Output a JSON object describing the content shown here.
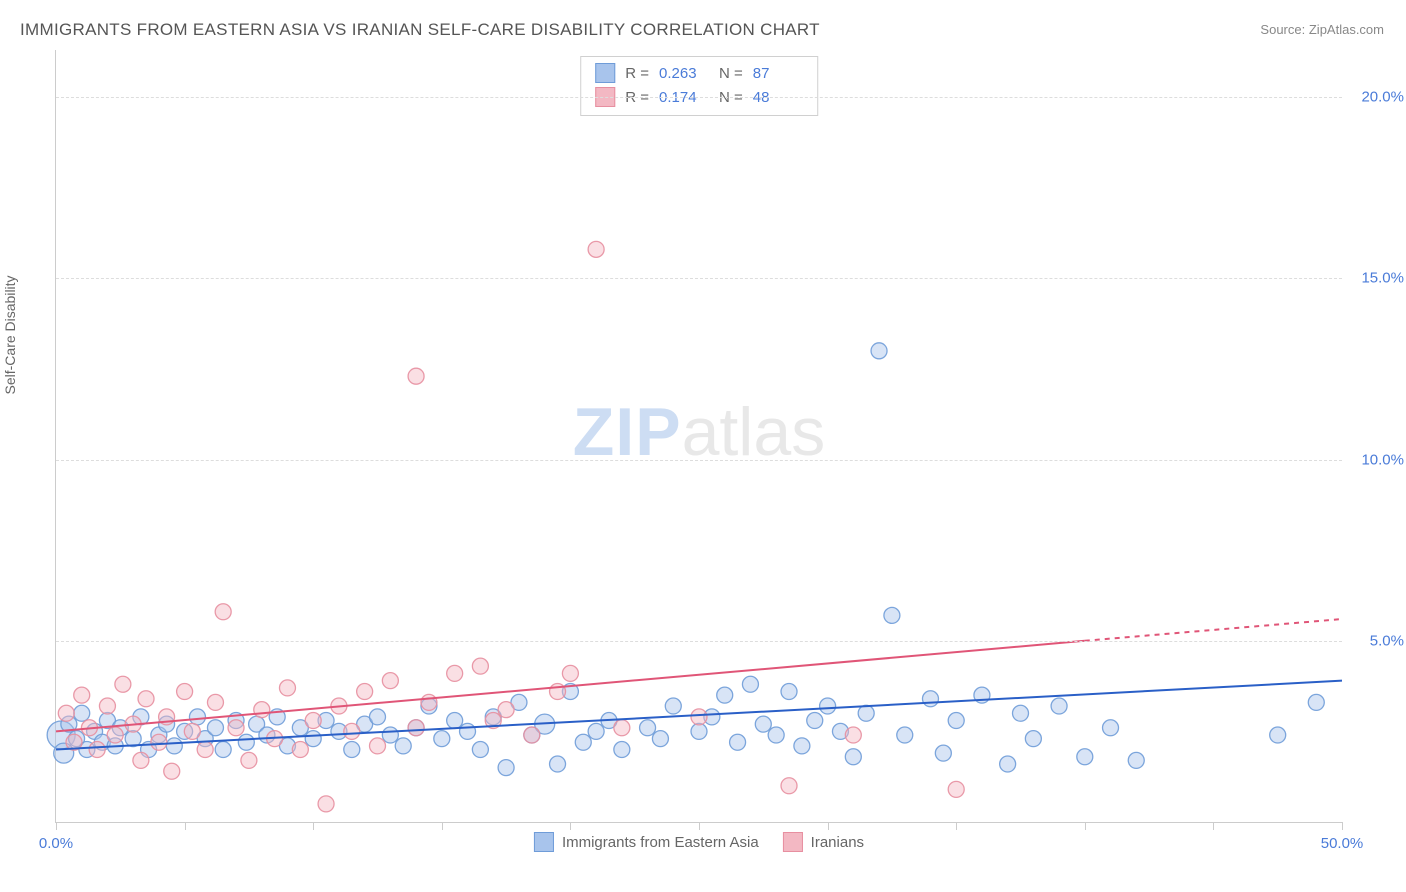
{
  "title": "IMMIGRANTS FROM EASTERN ASIA VS IRANIAN SELF-CARE DISABILITY CORRELATION CHART",
  "source_label": "Source:",
  "source_value": "ZipAtlas.com",
  "y_axis_title": "Self-Care Disability",
  "watermark": {
    "zip": "ZIP",
    "atlas": "atlas"
  },
  "chart": {
    "type": "scatter",
    "xlim": [
      0,
      50
    ],
    "ylim": [
      0,
      21.3
    ],
    "x_ticks": [
      0,
      5,
      10,
      15,
      20,
      25,
      30,
      35,
      40,
      45,
      50
    ],
    "x_tick_labels": {
      "0": "0.0%",
      "50": "50.0%"
    },
    "y_ticks": [
      5,
      10,
      15,
      20
    ],
    "y_tick_labels": {
      "5": "5.0%",
      "10": "10.0%",
      "15": "15.0%",
      "20": "20.0%"
    },
    "grid_color": "#dddddd",
    "axis_line_color": "#cccccc",
    "tick_label_color": "#4a7bd8",
    "background_color": "#ffffff",
    "marker_radius": 8,
    "marker_radius_large": 14,
    "marker_fill_opacity": 0.45,
    "marker_stroke_opacity": 0.9,
    "line_width": 2,
    "series": [
      {
        "name": "Immigrants from Eastern Asia",
        "color_fill": "#a8c4ec",
        "color_stroke": "#6f9cd8",
        "line_color": "#2a5fc7",
        "R": "0.263",
        "N": "87",
        "trend": {
          "x1": 0,
          "y1": 2.0,
          "x2": 50,
          "y2": 3.9
        },
        "points": [
          [
            0.2,
            2.4,
            14
          ],
          [
            0.3,
            1.9,
            10
          ],
          [
            0.5,
            2.7,
            8
          ],
          [
            0.8,
            2.3,
            8
          ],
          [
            1.0,
            3.0,
            8
          ],
          [
            1.2,
            2.0,
            8
          ],
          [
            1.5,
            2.5,
            8
          ],
          [
            1.8,
            2.2,
            8
          ],
          [
            2.0,
            2.8,
            8
          ],
          [
            2.3,
            2.1,
            8
          ],
          [
            2.5,
            2.6,
            8
          ],
          [
            3.0,
            2.3,
            8
          ],
          [
            3.3,
            2.9,
            8
          ],
          [
            3.6,
            2.0,
            8
          ],
          [
            4.0,
            2.4,
            8
          ],
          [
            4.3,
            2.7,
            8
          ],
          [
            4.6,
            2.1,
            8
          ],
          [
            5.0,
            2.5,
            8
          ],
          [
            5.5,
            2.9,
            8
          ],
          [
            5.8,
            2.3,
            8
          ],
          [
            6.2,
            2.6,
            8
          ],
          [
            6.5,
            2.0,
            8
          ],
          [
            7.0,
            2.8,
            8
          ],
          [
            7.4,
            2.2,
            8
          ],
          [
            7.8,
            2.7,
            8
          ],
          [
            8.2,
            2.4,
            8
          ],
          [
            8.6,
            2.9,
            8
          ],
          [
            9.0,
            2.1,
            8
          ],
          [
            9.5,
            2.6,
            8
          ],
          [
            10.0,
            2.3,
            8
          ],
          [
            10.5,
            2.8,
            8
          ],
          [
            11.0,
            2.5,
            8
          ],
          [
            11.5,
            2.0,
            8
          ],
          [
            12.0,
            2.7,
            8
          ],
          [
            12.5,
            2.9,
            8
          ],
          [
            13.0,
            2.4,
            8
          ],
          [
            13.5,
            2.1,
            8
          ],
          [
            14.0,
            2.6,
            8
          ],
          [
            14.5,
            3.2,
            8
          ],
          [
            15.0,
            2.3,
            8
          ],
          [
            15.5,
            2.8,
            8
          ],
          [
            16.0,
            2.5,
            8
          ],
          [
            16.5,
            2.0,
            8
          ],
          [
            17.0,
            2.9,
            8
          ],
          [
            17.5,
            1.5,
            8
          ],
          [
            18.0,
            3.3,
            8
          ],
          [
            18.5,
            2.4,
            8
          ],
          [
            19.0,
            2.7,
            10
          ],
          [
            19.5,
            1.6,
            8
          ],
          [
            20.0,
            3.6,
            8
          ],
          [
            20.5,
            2.2,
            8
          ],
          [
            21.0,
            2.5,
            8
          ],
          [
            21.5,
            2.8,
            8
          ],
          [
            22.0,
            2.0,
            8
          ],
          [
            23.0,
            2.6,
            8
          ],
          [
            23.5,
            2.3,
            8
          ],
          [
            24.0,
            3.2,
            8
          ],
          [
            25.0,
            2.5,
            8
          ],
          [
            25.5,
            2.9,
            8
          ],
          [
            26.0,
            3.5,
            8
          ],
          [
            26.5,
            2.2,
            8
          ],
          [
            27.0,
            3.8,
            8
          ],
          [
            27.5,
            2.7,
            8
          ],
          [
            28.0,
            2.4,
            8
          ],
          [
            28.5,
            3.6,
            8
          ],
          [
            29.0,
            2.1,
            8
          ],
          [
            29.5,
            2.8,
            8
          ],
          [
            30.0,
            3.2,
            8
          ],
          [
            30.5,
            2.5,
            8
          ],
          [
            31.0,
            1.8,
            8
          ],
          [
            31.5,
            3.0,
            8
          ],
          [
            32.0,
            13.0,
            8
          ],
          [
            32.5,
            5.7,
            8
          ],
          [
            33.0,
            2.4,
            8
          ],
          [
            34.0,
            3.4,
            8
          ],
          [
            34.5,
            1.9,
            8
          ],
          [
            35.0,
            2.8,
            8
          ],
          [
            36.0,
            3.5,
            8
          ],
          [
            37.0,
            1.6,
            8
          ],
          [
            37.5,
            3.0,
            8
          ],
          [
            38.0,
            2.3,
            8
          ],
          [
            39.0,
            3.2,
            8
          ],
          [
            40.0,
            1.8,
            8
          ],
          [
            41.0,
            2.6,
            8
          ],
          [
            42.0,
            1.7,
            8
          ],
          [
            47.5,
            2.4,
            8
          ],
          [
            49.0,
            3.3,
            8
          ]
        ]
      },
      {
        "name": "Iranians",
        "color_fill": "#f3b8c3",
        "color_stroke": "#e78fa0",
        "line_color": "#e05577",
        "R": "0.174",
        "N": "48",
        "trend": {
          "x1": 0,
          "y1": 2.5,
          "x2": 40,
          "y2": 5.0
        },
        "trend_dashed": {
          "x1": 40,
          "y1": 5.0,
          "x2": 50,
          "y2": 5.6
        },
        "points": [
          [
            0.4,
            3.0,
            8
          ],
          [
            0.7,
            2.2,
            8
          ],
          [
            1.0,
            3.5,
            8
          ],
          [
            1.3,
            2.6,
            8
          ],
          [
            1.6,
            2.0,
            8
          ],
          [
            2.0,
            3.2,
            8
          ],
          [
            2.3,
            2.4,
            8
          ],
          [
            2.6,
            3.8,
            8
          ],
          [
            3.0,
            2.7,
            8
          ],
          [
            3.3,
            1.7,
            8
          ],
          [
            3.5,
            3.4,
            8
          ],
          [
            4.0,
            2.2,
            8
          ],
          [
            4.3,
            2.9,
            8
          ],
          [
            4.5,
            1.4,
            8
          ],
          [
            5.0,
            3.6,
            8
          ],
          [
            5.3,
            2.5,
            8
          ],
          [
            5.8,
            2.0,
            8
          ],
          [
            6.2,
            3.3,
            8
          ],
          [
            6.5,
            5.8,
            8
          ],
          [
            7.0,
            2.6,
            8
          ],
          [
            7.5,
            1.7,
            8
          ],
          [
            8.0,
            3.1,
            8
          ],
          [
            8.5,
            2.3,
            8
          ],
          [
            9.0,
            3.7,
            8
          ],
          [
            9.5,
            2.0,
            8
          ],
          [
            10.0,
            2.8,
            8
          ],
          [
            10.5,
            0.5,
            8
          ],
          [
            11.0,
            3.2,
            8
          ],
          [
            11.5,
            2.5,
            8
          ],
          [
            12.0,
            3.6,
            8
          ],
          [
            12.5,
            2.1,
            8
          ],
          [
            13.0,
            3.9,
            8
          ],
          [
            14.0,
            12.3,
            8
          ],
          [
            14.0,
            2.6,
            8
          ],
          [
            14.5,
            3.3,
            8
          ],
          [
            15.5,
            4.1,
            8
          ],
          [
            16.5,
            4.3,
            8
          ],
          [
            17.0,
            2.8,
            8
          ],
          [
            17.5,
            3.1,
            8
          ],
          [
            18.5,
            2.4,
            8
          ],
          [
            19.5,
            3.6,
            8
          ],
          [
            20.0,
            4.1,
            8
          ],
          [
            21.0,
            15.8,
            8
          ],
          [
            22.0,
            2.6,
            8
          ],
          [
            25.0,
            2.9,
            8
          ],
          [
            28.5,
            1.0,
            8
          ],
          [
            31.0,
            2.4,
            8
          ],
          [
            35.0,
            0.9,
            8
          ]
        ]
      }
    ]
  },
  "legend_top": {
    "r_label": "R =",
    "n_label": "N ="
  }
}
